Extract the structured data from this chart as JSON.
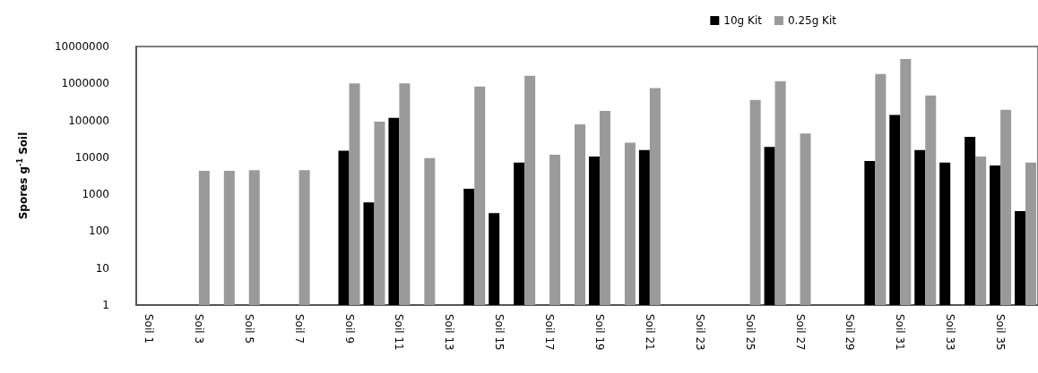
{
  "chart_data": {
    "type": "bar",
    "ylabel": "Spores g$^{-1}$ Soil",
    "categories": [
      "Soil 1",
      null,
      "Soil 3",
      null,
      "Soil 5",
      null,
      "Soil 7",
      null,
      "Soil 9",
      null,
      "Soil 11",
      null,
      "Soil 13",
      null,
      "Soil 15",
      null,
      "Soil 17",
      null,
      "Soil 19",
      null,
      "Soil 21",
      null,
      "Soil 23",
      null,
      "Soil 25",
      null,
      "Soil 27",
      null,
      "Soil 29",
      null,
      "Soil 31",
      null,
      "Soil 33",
      null,
      "Soil 35",
      null
    ],
    "series": [
      {
        "name": "10g Kit",
        "color": "#000000",
        "values": [
          null,
          null,
          null,
          null,
          null,
          null,
          null,
          null,
          15000,
          600,
          117000,
          null,
          null,
          1400,
          310,
          7200,
          null,
          null,
          10500,
          null,
          15700,
          null,
          null,
          null,
          null,
          19000,
          null,
          null,
          null,
          7900,
          141000,
          15700,
          7200,
          36000,
          6000,
          350
        ]
      },
      {
        "name": "0.25g Kit",
        "color": "#9a9a9a",
        "values": [
          null,
          null,
          4300,
          4300,
          4500,
          null,
          4500,
          null,
          1000000,
          92000,
          1000000,
          9500,
          null,
          830000,
          null,
          1600000,
          11700,
          78000,
          180000,
          25000,
          750000,
          null,
          null,
          null,
          355000,
          1150000,
          44000,
          null,
          null,
          1800000,
          4600000,
          470000,
          null,
          10500,
          194000,
          7200
        ]
      }
    ],
    "log": "y",
    "ylim": [
      1,
      10000000
    ],
    "yticks": [
      1,
      10,
      100,
      1000,
      10000,
      100000,
      1000000,
      10000000
    ],
    "grid": false,
    "legend": "top right"
  }
}
